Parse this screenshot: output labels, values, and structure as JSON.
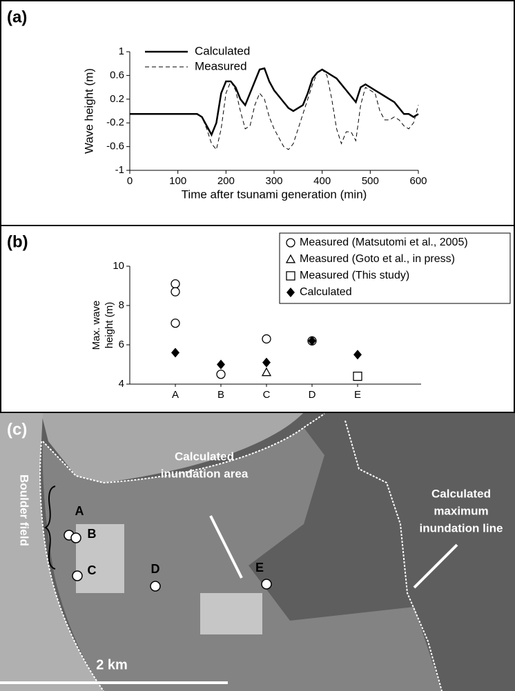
{
  "chart_data": [
    {
      "type": "line",
      "label": "(a)",
      "x_label": "Time after tsunami generation (min)",
      "y_label": "Wave height (m)",
      "x": [
        0,
        10,
        20,
        30,
        40,
        50,
        60,
        70,
        80,
        90,
        100,
        110,
        120,
        130,
        140,
        150,
        160,
        170,
        180,
        190,
        200,
        210,
        220,
        230,
        240,
        250,
        260,
        270,
        280,
        290,
        300,
        310,
        320,
        330,
        340,
        350,
        360,
        370,
        380,
        390,
        400,
        410,
        420,
        430,
        440,
        450,
        460,
        470,
        480,
        490,
        500,
        510,
        520,
        530,
        540,
        550,
        560,
        570,
        580,
        590,
        600
      ],
      "xlim": [
        0,
        600
      ],
      "xticks": [
        0,
        100,
        200,
        300,
        400,
        500,
        600
      ],
      "ylim": [
        -1,
        1
      ],
      "yticks": [
        -1,
        -0.6,
        -0.2,
        0.2,
        0.6,
        1
      ],
      "series": [
        {
          "name": "Calculated",
          "color": "#000000",
          "dash": false,
          "values": [
            -0.05,
            -0.05,
            -0.05,
            -0.05,
            -0.05,
            -0.05,
            -0.05,
            -0.05,
            -0.05,
            -0.05,
            -0.05,
            -0.05,
            -0.05,
            -0.05,
            -0.05,
            -0.1,
            -0.25,
            -0.4,
            -0.2,
            0.3,
            0.5,
            0.5,
            0.4,
            0.2,
            0.1,
            0.3,
            0.5,
            0.7,
            0.72,
            0.5,
            0.35,
            0.25,
            0.15,
            0.05,
            0.0,
            0.05,
            0.1,
            0.3,
            0.55,
            0.65,
            0.7,
            0.65,
            0.6,
            0.55,
            0.45,
            0.35,
            0.25,
            0.15,
            0.4,
            0.45,
            0.4,
            0.35,
            0.3,
            0.25,
            0.2,
            0.15,
            0.05,
            -0.05,
            -0.05,
            -0.1,
            -0.05
          ]
        },
        {
          "name": "Measured",
          "color": "#000000",
          "dash": true,
          "values": [
            -0.05,
            -0.05,
            -0.05,
            -0.05,
            -0.05,
            -0.05,
            -0.05,
            -0.05,
            -0.05,
            -0.05,
            -0.05,
            -0.05,
            -0.05,
            -0.05,
            -0.05,
            -0.1,
            -0.3,
            -0.55,
            -0.65,
            -0.3,
            0.3,
            0.5,
            0.35,
            0.0,
            -0.3,
            -0.25,
            0.1,
            0.3,
            0.2,
            -0.1,
            -0.3,
            -0.45,
            -0.6,
            -0.65,
            -0.55,
            -0.3,
            -0.05,
            0.2,
            0.45,
            0.65,
            0.7,
            0.6,
            0.2,
            -0.3,
            -0.55,
            -0.35,
            -0.35,
            -0.5,
            0.1,
            0.4,
            0.35,
            0.3,
            0.0,
            -0.15,
            -0.15,
            -0.1,
            -0.15,
            -0.25,
            -0.3,
            -0.2,
            0.1
          ]
        }
      ]
    },
    {
      "type": "scatter",
      "label": "(b)",
      "y_label": [
        "Max. wave",
        "height (m)"
      ],
      "categories": [
        "A",
        "B",
        "C",
        "D",
        "E"
      ],
      "ylim": [
        4,
        10
      ],
      "yticks": [
        4,
        6,
        8,
        10
      ],
      "series": [
        {
          "name": "Measured (Matsutomi et al., 2005)",
          "marker": "circle",
          "color": "#000000",
          "values": [
            [
              9.1,
              8.7,
              7.1
            ],
            [
              4.5
            ],
            [
              6.3
            ],
            [
              6.2
            ],
            null
          ]
        },
        {
          "name": "Measured (Goto et al., in press)",
          "marker": "triangle",
          "color": "#000000",
          "values": [
            null,
            null,
            4.6,
            null,
            null
          ]
        },
        {
          "name": "Measured (This study)",
          "marker": "square",
          "color": "#000000",
          "values": [
            null,
            null,
            null,
            null,
            4.4
          ]
        },
        {
          "name": "Calculated",
          "marker": "diamond",
          "color": "#000000",
          "values": [
            5.6,
            5.0,
            5.1,
            6.2,
            5.5
          ]
        }
      ]
    }
  ],
  "map": {
    "label": "(c)",
    "sites": [
      "A",
      "B",
      "C",
      "D",
      "E"
    ],
    "boulder_field": "Boulder field",
    "inundation_area": [
      "Calculated",
      "inundation area"
    ],
    "inundation_line": [
      "Calculated",
      "maximum",
      "inundation line"
    ],
    "scale": "2 km"
  }
}
